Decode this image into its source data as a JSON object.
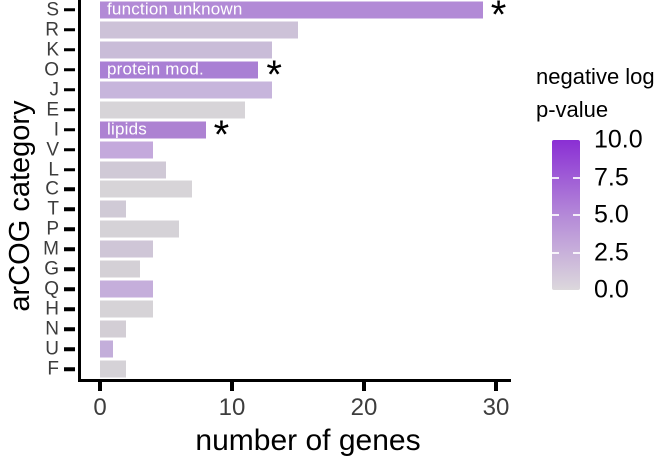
{
  "chart_data": {
    "type": "bar",
    "orientation": "horizontal",
    "xlabel": "number of genes",
    "ylabel": "arCOG category",
    "xlim": [
      0,
      31.5
    ],
    "xticks": [
      0,
      10,
      20,
      30
    ],
    "grid": false,
    "categories": [
      "S",
      "R",
      "K",
      "O",
      "J",
      "E",
      "I",
      "V",
      "L",
      "C",
      "T",
      "P",
      "M",
      "G",
      "Q",
      "H",
      "N",
      "U",
      "F"
    ],
    "values": [
      29,
      15,
      13,
      12,
      13,
      11,
      8,
      4,
      5,
      7,
      2,
      6,
      4,
      3,
      4,
      4,
      2,
      1,
      2
    ],
    "series_name": "number of genes",
    "color_encoding": "negative log p-value",
    "bar_colors": [
      "#b28ad6",
      "#cdc2d8",
      "#c9bcd8",
      "#a97fd4",
      "#c7b5dc",
      "#d7d4d8",
      "#ad82d2",
      "#c4a9dc",
      "#d0c9d6",
      "#d7d4d8",
      "#d0cad6",
      "#d5d2d7",
      "#cfc6d7",
      "#d4d0d6",
      "#c5aedb",
      "#d6d3d7",
      "#d3ced5",
      "#c3aeda",
      "#d5d2d7"
    ],
    "annotations": [
      {
        "category": "S",
        "label": "function unknown",
        "marker": "*"
      },
      {
        "category": "O",
        "label": "protein mod.",
        "marker": "*"
      },
      {
        "category": "I",
        "label": "lipids",
        "marker": "*"
      }
    ],
    "legend": {
      "title_line1": "negative log",
      "title_line2": "p-value",
      "tick_labels": [
        "10.0",
        "7.5",
        "5.0",
        "2.5",
        "0.0"
      ],
      "tick_values": [
        10.0,
        7.5,
        5.0,
        2.5,
        0.0
      ],
      "position": "right",
      "gradient_top_color": "#8a2fd4",
      "gradient_mid_color": "#b489d8",
      "gradient_bottom_color": "#dcd8dc"
    },
    "axis_color": "#000000",
    "tick_label_color": "#3d3d3d"
  }
}
